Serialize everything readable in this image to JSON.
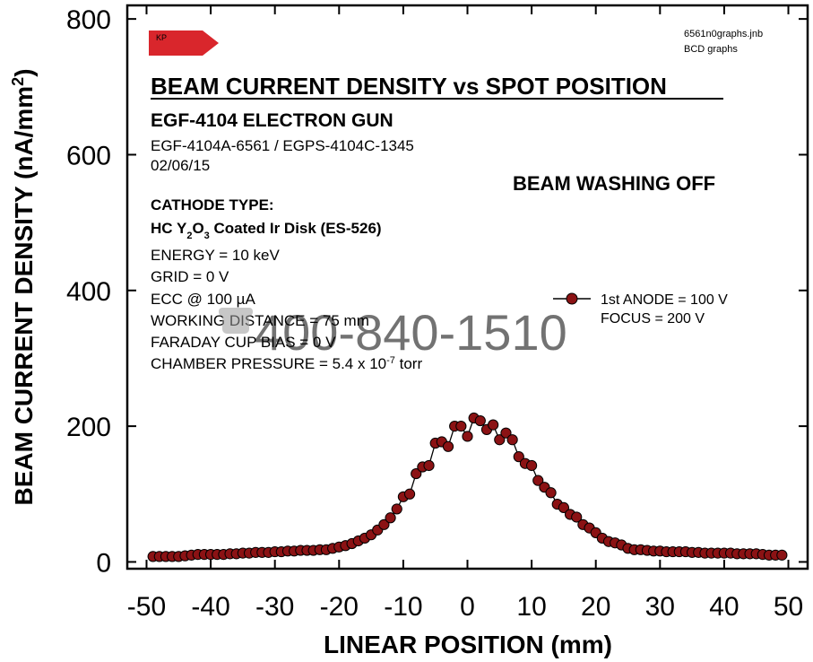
{
  "chart_data": {
    "type": "line",
    "title": "BEAM CURRENT DENSITY vs SPOT POSITION",
    "subtitle": "EGF-4104 ELECTRON GUN",
    "model": "EGF-4104A-6561 / EGPS-4104C-1345",
    "date": "02/06/15",
    "file_name": "6561n0graphs.jnb",
    "file_label": "BCD graphs",
    "logo_text": "KP",
    "beam_washing": "BEAM WASHING OFF",
    "cathode_type_label": "CATHODE TYPE:",
    "cathode": {
      "prefix": "HC Y",
      "sub1": "2",
      "mid": "O",
      "sub2": "3",
      "suffix": " Coated Ir Disk (ES-526)"
    },
    "conditions": [
      "ENERGY = 10 keV",
      "GRID = 0 V",
      "ECC @ 100 µA",
      "WORKING DISTANCE = 75 mm",
      "FARADAY CUP BIAS = 0 V"
    ],
    "pressure": {
      "prefix": "CHAMBER PRESSURE = 5.4 x 10",
      "exp": "-7",
      "suffix": " torr"
    },
    "watermark": "400-840-1510",
    "xlabel": "LINEAR POSITION (mm)",
    "ylabel": {
      "main": "BEAM CURRENT DENSITY (nA/mm",
      "sup": "2",
      "close": ")"
    },
    "xlim": [
      -53,
      53
    ],
    "ylim": [
      -10,
      820
    ],
    "xticks": [
      -50,
      -40,
      -30,
      -20,
      -10,
      0,
      10,
      20,
      30,
      40,
      50
    ],
    "yticks": [
      0,
      200,
      400,
      600,
      800
    ],
    "marker_color": "#8b1214",
    "legend_position": "right",
    "series": [
      {
        "name": "1st ANODE = 100 V",
        "name2": "FOCUS = 200 V",
        "x": [
          -49,
          -48,
          -47,
          -46,
          -45,
          -44,
          -43,
          -42,
          -41,
          -40,
          -39,
          -38,
          -37,
          -36,
          -35,
          -34,
          -33,
          -32,
          -31,
          -30,
          -29,
          -28,
          -27,
          -26,
          -25,
          -24,
          -23,
          -22,
          -21,
          -20,
          -19,
          -18,
          -17,
          -16,
          -15,
          -14,
          -13,
          -12,
          -11,
          -10,
          -9,
          -8,
          -7,
          -6,
          -5,
          -4,
          -3,
          -2,
          -1,
          0,
          1,
          2,
          3,
          4,
          5,
          6,
          7,
          8,
          9,
          10,
          11,
          12,
          13,
          14,
          15,
          16,
          17,
          18,
          19,
          20,
          21,
          22,
          23,
          24,
          25,
          26,
          27,
          28,
          29,
          30,
          31,
          32,
          33,
          34,
          35,
          36,
          37,
          38,
          39,
          40,
          41,
          42,
          43,
          44,
          45,
          46,
          47,
          48,
          49
        ],
        "values": [
          8,
          8,
          8,
          8,
          8,
          9,
          10,
          11,
          11,
          11,
          11,
          11,
          12,
          12,
          13,
          13,
          14,
          14,
          14,
          15,
          15,
          16,
          16,
          17,
          17,
          17,
          18,
          18,
          20,
          22,
          24,
          27,
          31,
          35,
          40,
          47,
          55,
          65,
          78,
          96,
          100,
          130,
          140,
          142,
          175,
          177,
          170,
          200,
          200,
          185,
          212,
          208,
          195,
          202,
          180,
          190,
          180,
          155,
          145,
          142,
          120,
          110,
          102,
          85,
          80,
          70,
          66,
          55,
          50,
          43,
          35,
          30,
          28,
          25,
          20,
          18,
          18,
          17,
          16,
          16,
          15,
          15,
          15,
          15,
          14,
          14,
          13,
          13,
          13,
          13,
          13,
          12,
          12,
          12,
          12,
          11,
          10,
          10,
          10
        ]
      }
    ]
  }
}
